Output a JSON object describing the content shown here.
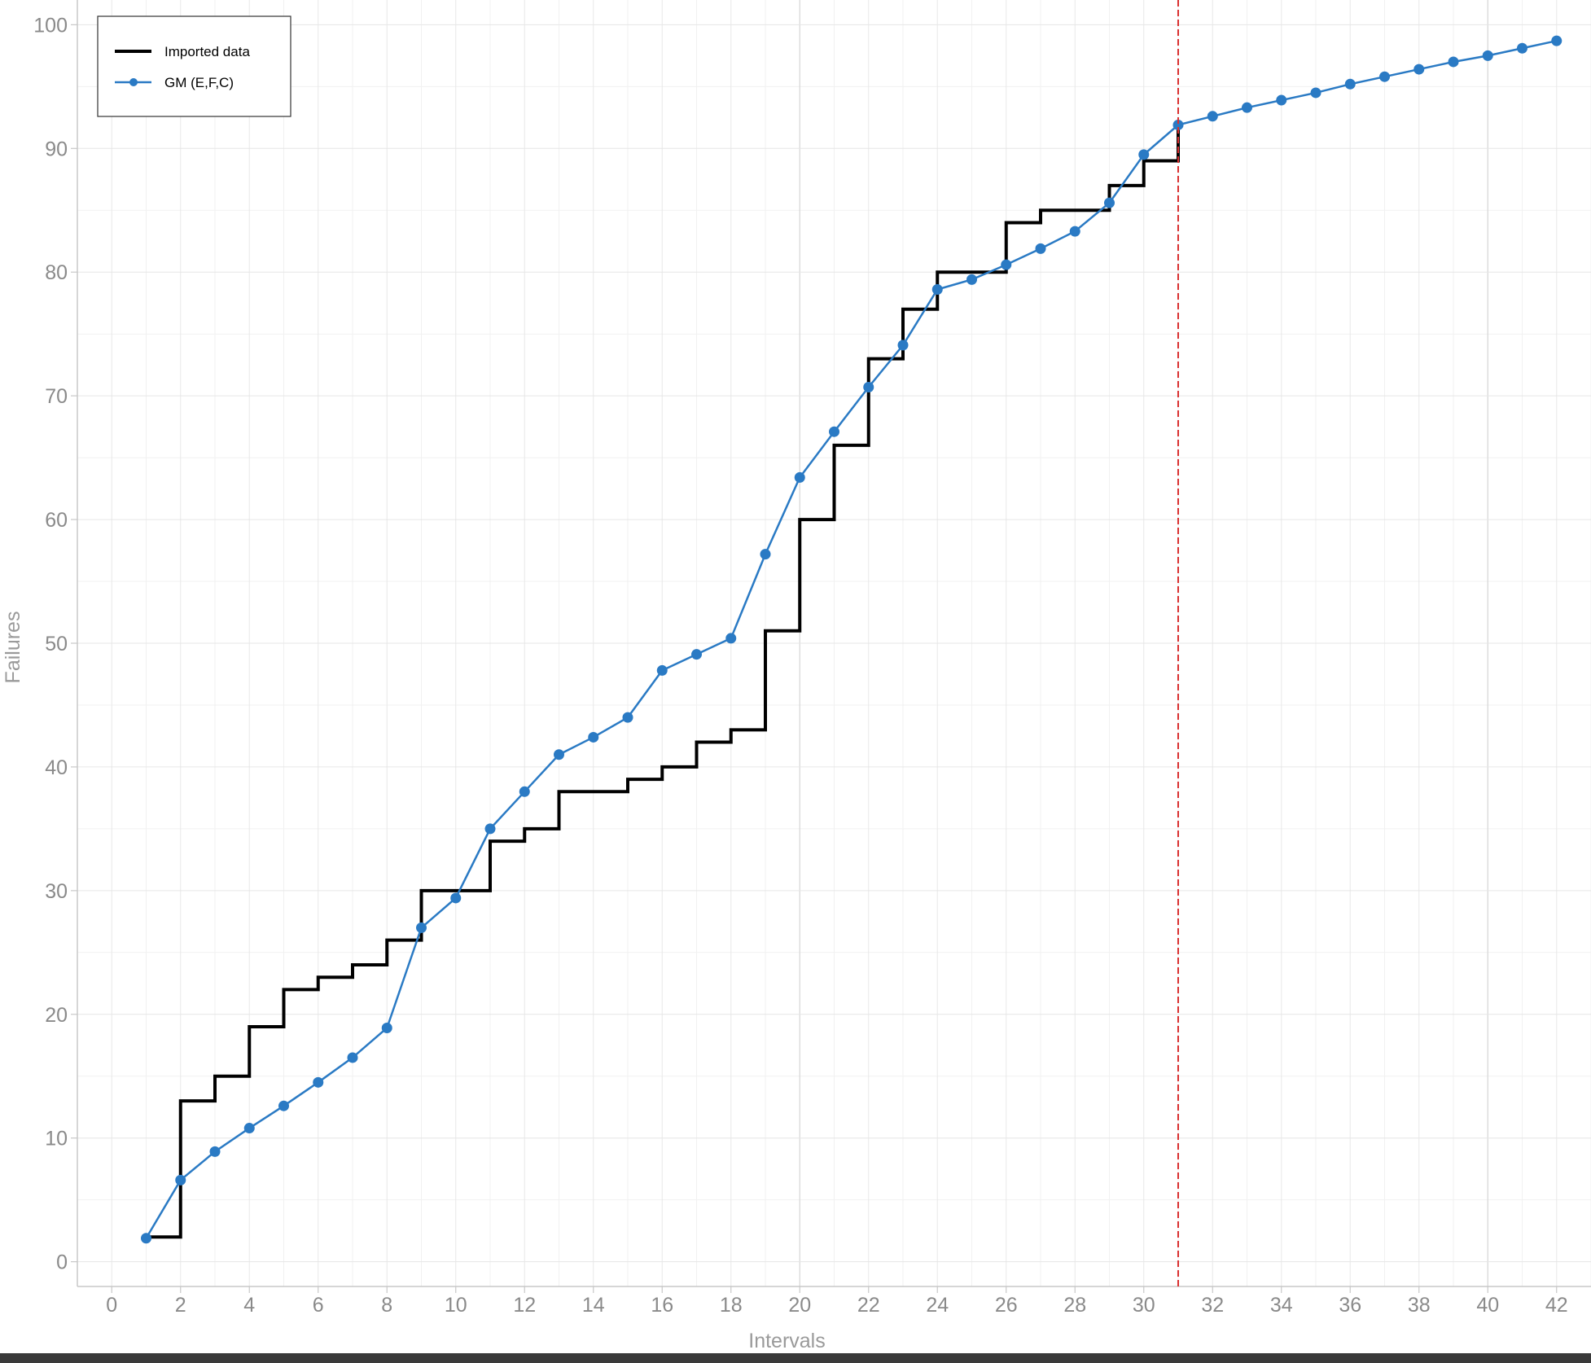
{
  "chart_data": {
    "type": "line",
    "xlabel": "Intervals",
    "ylabel": "Failures",
    "xlim": [
      -1,
      43
    ],
    "ylim": [
      -2,
      102
    ],
    "x_ticks": [
      0,
      2,
      4,
      6,
      8,
      10,
      12,
      14,
      16,
      18,
      20,
      22,
      24,
      26,
      28,
      30,
      32,
      34,
      36,
      38,
      40,
      42
    ],
    "y_ticks": [
      0,
      10,
      20,
      30,
      40,
      50,
      60,
      70,
      80,
      90,
      100
    ],
    "grid": true,
    "legend_position": "top-left",
    "series": [
      {
        "name": "Imported data",
        "style": "step",
        "color": "#000000",
        "x": [
          1,
          2,
          3,
          4,
          5,
          6,
          7,
          8,
          9,
          10,
          11,
          12,
          13,
          14,
          15,
          16,
          17,
          18,
          19,
          20,
          21,
          22,
          23,
          24,
          25,
          26,
          27,
          28,
          29,
          30,
          31
        ],
        "y": [
          2,
          13,
          15,
          19,
          22,
          23,
          24,
          26,
          30,
          30,
          34,
          35,
          38,
          38,
          39,
          40,
          42,
          43,
          51,
          60,
          66,
          73,
          77,
          80,
          80,
          84,
          85,
          85,
          87,
          89,
          92
        ]
      },
      {
        "name": "GM (E,F,C)",
        "style": "line-markers",
        "color": "#2a7ac4",
        "x": [
          1,
          2,
          3,
          4,
          5,
          6,
          7,
          8,
          9,
          10,
          11,
          12,
          13,
          14,
          15,
          16,
          17,
          18,
          19,
          20,
          21,
          22,
          23,
          24,
          25,
          26,
          27,
          28,
          29,
          30,
          31,
          32,
          33,
          34,
          35,
          36,
          37,
          38,
          39,
          40,
          41,
          42
        ],
        "y": [
          1.9,
          6.6,
          8.9,
          10.8,
          12.6,
          14.5,
          16.5,
          18.9,
          27.0,
          29.4,
          35.0,
          38.0,
          41.0,
          42.4,
          44.0,
          47.8,
          49.1,
          50.4,
          57.2,
          63.4,
          67.1,
          70.7,
          74.1,
          78.6,
          79.4,
          80.6,
          81.9,
          83.3,
          85.6,
          89.5,
          91.9,
          92.6,
          93.3,
          93.9,
          94.5,
          95.2,
          95.8,
          96.4,
          97.0,
          97.5,
          98.1,
          98.7
        ]
      }
    ],
    "annotations": [
      {
        "type": "vline",
        "x": 31,
        "color": "#d93030",
        "dash": "dashed"
      }
    ]
  }
}
